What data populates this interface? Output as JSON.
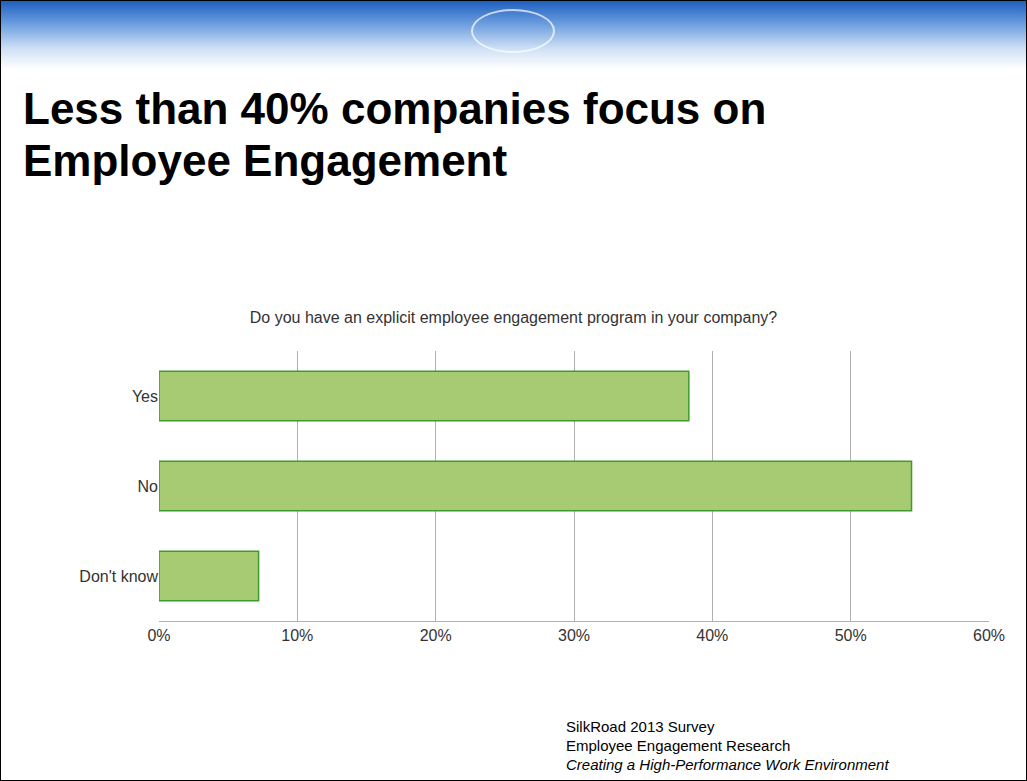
{
  "slide": {
    "heading": "Less than 40% companies focus on Employee Engagement",
    "source": [
      "SilkRoad 2013 Survey",
      "Employee Engagement Research",
      "Creating a High-Performance Work Environment"
    ]
  },
  "chart_data": {
    "type": "bar",
    "orientation": "horizontal",
    "title": "Do you have an explicit employee engagement program in your company?",
    "categories": [
      "Yes",
      "No",
      "Don't know"
    ],
    "values": [
      38.3,
      54.4,
      7.2
    ],
    "color": "#a6cb72",
    "xlim": [
      0,
      60
    ],
    "xticks": [
      {
        "value": 0,
        "label": "0%"
      },
      {
        "value": 10,
        "label": "10%"
      },
      {
        "value": 20,
        "label": "20%"
      },
      {
        "value": 30,
        "label": "30%"
      },
      {
        "value": 40,
        "label": "40%"
      },
      {
        "value": 50,
        "label": "50%"
      },
      {
        "value": 60,
        "label": "60%"
      }
    ],
    "grid": true
  }
}
